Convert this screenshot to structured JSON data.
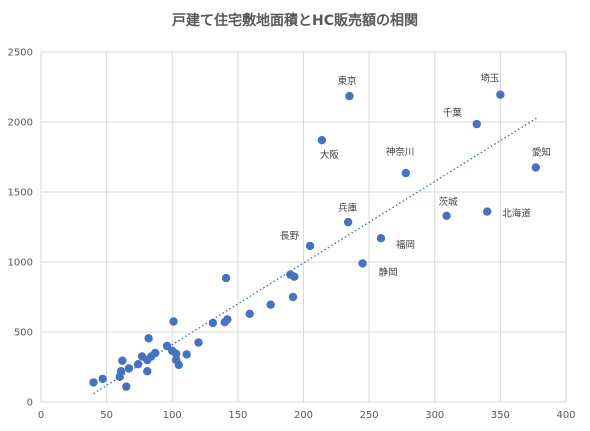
{
  "chart_data": {
    "type": "scatter",
    "title": "戸建て住宅敷地面積とHC販売額の相関",
    "xlim": [
      0,
      400
    ],
    "ylim": [
      0,
      2500
    ],
    "x_ticks": [
      0,
      50,
      100,
      150,
      200,
      250,
      300,
      350,
      400
    ],
    "y_ticks": [
      0,
      500,
      1000,
      1500,
      2000,
      2500
    ],
    "grid": true,
    "marker_color": "#4472C4",
    "trendline": {
      "style": "dotted",
      "color": "#4472C4",
      "x": [
        40,
        378
      ],
      "y": [
        60,
        2030
      ]
    },
    "points": [
      {
        "x": 235,
        "y": 2185,
        "label": "東京"
      },
      {
        "x": 350,
        "y": 2195,
        "label": "埼玉"
      },
      {
        "x": 332,
        "y": 1985,
        "label": "千葉"
      },
      {
        "x": 214,
        "y": 1870,
        "label": "大阪"
      },
      {
        "x": 278,
        "y": 1635,
        "label": "神奈川"
      },
      {
        "x": 377,
        "y": 1675,
        "label": "愛知"
      },
      {
        "x": 309,
        "y": 1330,
        "label": "茨城"
      },
      {
        "x": 340,
        "y": 1360,
        "label": "北海道"
      },
      {
        "x": 234,
        "y": 1285,
        "label": "兵庫"
      },
      {
        "x": 205,
        "y": 1115,
        "label": "長野"
      },
      {
        "x": 259,
        "y": 1170,
        "label": "福岡"
      },
      {
        "x": 245,
        "y": 990,
        "label": "静岡"
      },
      {
        "x": 190,
        "y": 910
      },
      {
        "x": 193,
        "y": 895
      },
      {
        "x": 192,
        "y": 750
      },
      {
        "x": 141,
        "y": 885
      },
      {
        "x": 175,
        "y": 695
      },
      {
        "x": 159,
        "y": 630
      },
      {
        "x": 142,
        "y": 590
      },
      {
        "x": 140,
        "y": 570
      },
      {
        "x": 131,
        "y": 565
      },
      {
        "x": 101,
        "y": 575
      },
      {
        "x": 120,
        "y": 425
      },
      {
        "x": 82,
        "y": 455
      },
      {
        "x": 96,
        "y": 400
      },
      {
        "x": 100,
        "y": 365
      },
      {
        "x": 103,
        "y": 345
      },
      {
        "x": 111,
        "y": 340
      },
      {
        "x": 103,
        "y": 300
      },
      {
        "x": 105,
        "y": 265
      },
      {
        "x": 87,
        "y": 350
      },
      {
        "x": 84,
        "y": 325
      },
      {
        "x": 77,
        "y": 325
      },
      {
        "x": 81,
        "y": 300
      },
      {
        "x": 74,
        "y": 270
      },
      {
        "x": 62,
        "y": 295
      },
      {
        "x": 67,
        "y": 240
      },
      {
        "x": 61,
        "y": 220
      },
      {
        "x": 81,
        "y": 220
      },
      {
        "x": 60,
        "y": 180
      },
      {
        "x": 47,
        "y": 165
      },
      {
        "x": 40,
        "y": 140
      },
      {
        "x": 65,
        "y": 110
      }
    ]
  }
}
